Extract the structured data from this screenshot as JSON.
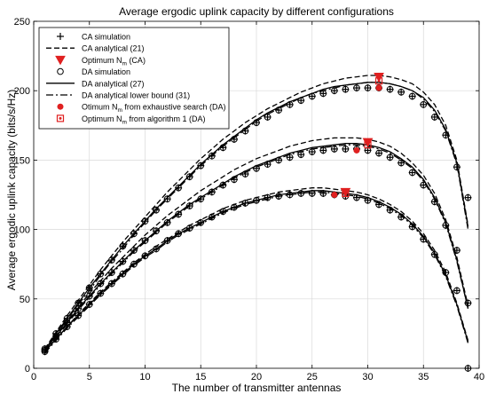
{
  "chart_data": {
    "type": "line",
    "title": "Average ergodic uplink capacity by different configurations",
    "xlabel": "The number of transmitter antennas",
    "ylabel": "Average ergodic uplink capacity (bits/s/Hz)",
    "xlim": [
      0,
      40
    ],
    "ylim": [
      0,
      250
    ],
    "xticks": [
      0,
      5,
      10,
      15,
      20,
      25,
      30,
      35,
      40
    ],
    "yticks": [
      0,
      50,
      100,
      150,
      200,
      250
    ],
    "grid": true,
    "legend_position": "top-left",
    "legend": [
      {
        "label": "CA simulation",
        "marker": "plus",
        "line": "none"
      },
      {
        "label": "CA analytical (21)",
        "marker": "none",
        "line": "dashed"
      },
      {
        "label": "Optimum N",
        "sub": "m",
        "suffix": " (CA)",
        "marker": "triangle-down",
        "line": "none",
        "color": "#e02020"
      },
      {
        "label": "DA simulation",
        "marker": "circle",
        "line": "none"
      },
      {
        "label": "DA analytical (27)",
        "marker": "none",
        "line": "solid"
      },
      {
        "label": "DA analytical lower bound (31)",
        "marker": "none",
        "line": "dashdot"
      },
      {
        "label": "Otimum N",
        "sub": "m",
        "suffix": " from exhaustive search (DA)",
        "marker": "filled-circle",
        "line": "none",
        "color": "#e02020"
      },
      {
        "label": "Optimum N",
        "sub": "m",
        "suffix": " from algorithm 1 (DA)",
        "marker": "square-dot",
        "line": "none",
        "color": "#e02020"
      }
    ],
    "groups": [
      {
        "x": [
          1,
          2,
          3,
          4,
          5,
          6,
          7,
          8,
          9,
          10,
          11,
          12,
          13,
          14,
          15,
          16,
          17,
          18,
          19,
          20,
          21,
          22,
          23,
          24,
          25,
          26,
          27,
          28,
          29,
          30,
          31,
          32,
          33,
          34,
          35,
          36,
          37,
          38,
          39
        ],
        "ca_analytical": [
          14,
          26,
          38,
          49,
          60,
          71,
          81,
          91,
          100,
          109,
          118,
          127,
          135,
          143,
          151,
          158,
          165,
          171,
          177,
          182,
          187,
          191,
          195,
          199,
          202,
          205,
          207,
          209,
          210,
          211,
          211,
          210,
          208,
          205,
          199,
          190,
          175,
          150,
          103
        ],
        "da_analytical": [
          13,
          25,
          36,
          47,
          58,
          68,
          78,
          88,
          97,
          106,
          115,
          123,
          131,
          139,
          147,
          154,
          161,
          167,
          173,
          179,
          184,
          188,
          192,
          195,
          198,
          201,
          203,
          204,
          205,
          206,
          206,
          205,
          203,
          200,
          195,
          186,
          172,
          148,
          102
        ],
        "da_lower_bound": [
          13,
          24,
          35,
          46,
          56,
          67,
          77,
          86,
          96,
          105,
          114,
          122,
          130,
          138,
          146,
          153,
          160,
          166,
          172,
          178,
          183,
          187,
          191,
          195,
          198,
          200,
          202,
          204,
          205,
          206,
          206,
          205,
          203,
          200,
          194,
          185,
          171,
          147,
          100
        ],
        "sim_points": [
          14,
          25,
          36,
          47,
          58,
          68,
          78,
          88,
          97,
          106,
          114,
          122,
          130,
          138,
          146,
          153,
          159,
          165,
          171,
          177,
          181,
          186,
          190,
          193,
          196,
          198,
          200,
          201,
          202,
          202,
          202,
          201,
          199,
          196,
          190,
          181,
          168,
          145,
          123
        ],
        "optimum_ca": [
          31,
          210
        ],
        "exhaustive_da": [
          31,
          202
        ],
        "algorithm_da": [
          31,
          207
        ]
      },
      {
        "x": [
          1,
          2,
          3,
          4,
          5,
          6,
          7,
          8,
          9,
          10,
          11,
          12,
          13,
          14,
          15,
          16,
          17,
          18,
          19,
          20,
          21,
          22,
          23,
          24,
          25,
          26,
          27,
          28,
          29,
          30,
          31,
          32,
          33,
          34,
          35,
          36,
          37,
          38,
          39
        ],
        "ca_analytical": [
          13,
          24,
          34,
          44,
          54,
          63,
          72,
          80,
          88,
          96,
          103,
          110,
          116,
          122,
          128,
          133,
          138,
          143,
          147,
          151,
          154,
          157,
          160,
          162,
          164,
          165,
          166,
          166,
          166,
          165,
          163,
          160,
          155,
          148,
          139,
          126,
          107,
          80,
          45
        ],
        "da_analytical": [
          13,
          23,
          33,
          43,
          52,
          61,
          69,
          77,
          85,
          92,
          99,
          106,
          112,
          118,
          123,
          128,
          133,
          138,
          142,
          146,
          149,
          152,
          155,
          157,
          159,
          160,
          161,
          162,
          162,
          161,
          159,
          156,
          151,
          145,
          136,
          123,
          105,
          78,
          43
        ],
        "da_lower_bound": [
          12,
          22,
          32,
          42,
          51,
          60,
          68,
          76,
          84,
          91,
          98,
          105,
          111,
          117,
          122,
          127,
          132,
          137,
          141,
          145,
          148,
          151,
          154,
          156,
          158,
          159,
          160,
          161,
          161,
          160,
          158,
          155,
          150,
          144,
          135,
          122,
          104,
          77,
          43
        ],
        "sim_points": [
          13,
          23,
          33,
          43,
          52,
          61,
          69,
          77,
          85,
          92,
          99,
          105,
          111,
          117,
          122,
          127,
          132,
          136,
          140,
          144,
          147,
          150,
          152,
          154,
          156,
          157,
          158,
          158,
          158,
          157,
          155,
          152,
          148,
          141,
          132,
          120,
          103,
          85,
          47
        ],
        "optimum_ca": [
          30,
          163
        ],
        "exhaustive_da": [
          29,
          157
        ],
        "algorithm_da": [
          30,
          161
        ]
      },
      {
        "x": [
          1,
          2,
          3,
          4,
          5,
          6,
          7,
          8,
          9,
          10,
          11,
          12,
          13,
          14,
          15,
          16,
          17,
          18,
          19,
          20,
          21,
          22,
          23,
          24,
          25,
          26,
          27,
          28,
          29,
          30,
          31,
          32,
          33,
          34,
          35,
          36,
          37,
          38,
          39
        ],
        "ca_analytical": [
          12,
          21,
          30,
          39,
          47,
          55,
          62,
          69,
          76,
          82,
          88,
          93,
          98,
          103,
          107,
          111,
          115,
          118,
          121,
          123,
          125,
          127,
          128,
          129,
          130,
          130,
          129,
          128,
          127,
          125,
          122,
          118,
          113,
          106,
          97,
          85,
          69,
          47,
          20
        ],
        "da_analytical": [
          12,
          21,
          30,
          38,
          46,
          54,
          61,
          68,
          75,
          81,
          86,
          92,
          97,
          101,
          105,
          109,
          113,
          116,
          119,
          121,
          123,
          125,
          126,
          127,
          128,
          128,
          127,
          126,
          125,
          123,
          120,
          116,
          111,
          104,
          95,
          83,
          67,
          46,
          19
        ],
        "da_lower_bound": [
          11,
          20,
          29,
          37,
          45,
          53,
          60,
          67,
          74,
          80,
          85,
          91,
          96,
          100,
          104,
          108,
          112,
          115,
          118,
          120,
          122,
          124,
          125,
          126,
          127,
          127,
          126,
          125,
          124,
          122,
          119,
          115,
          110,
          103,
          94,
          82,
          66,
          45,
          18
        ],
        "sim_points": [
          12,
          21,
          30,
          38,
          46,
          54,
          61,
          68,
          75,
          81,
          86,
          92,
          97,
          101,
          105,
          109,
          113,
          116,
          119,
          121,
          123,
          124,
          125,
          126,
          126,
          126,
          125,
          124,
          123,
          121,
          118,
          114,
          109,
          102,
          93,
          82,
          69,
          56,
          0
        ],
        "optimum_ca": [
          28,
          127
        ],
        "exhaustive_da": [
          27,
          125
        ],
        "algorithm_da": [
          28,
          126
        ]
      }
    ]
  }
}
